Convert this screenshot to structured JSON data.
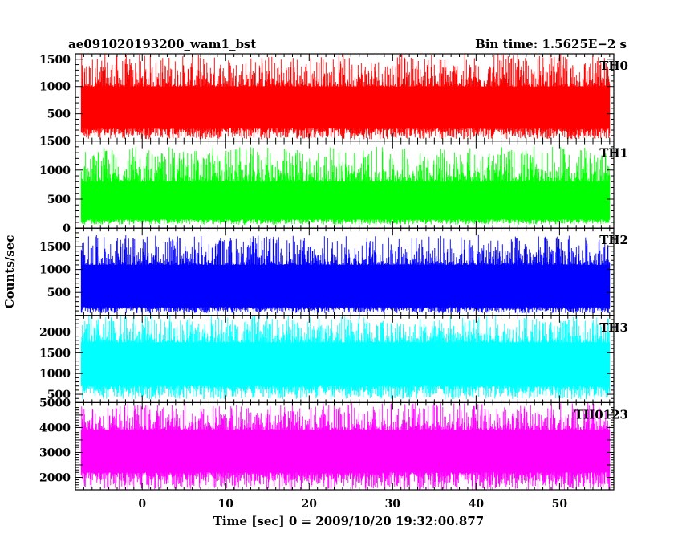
{
  "chart_data": {
    "type": "line",
    "title_left": "ae091020193200_wam1_bst",
    "title_right": "Bin time: 1.5625E−2 s",
    "xlabel": "Time [sec] 0 = 2009/10/20 19:32:00.877",
    "ylabel": "Counts/sec",
    "xlim": [
      -8,
      56.5
    ],
    "x_ticks": [
      0,
      10,
      20,
      30,
      40,
      50
    ],
    "x_data_range": [
      -7.3,
      56.0
    ],
    "grid": false,
    "panels": [
      {
        "name": "TH0",
        "color": "#ff0000",
        "ylim": [
          0,
          1600
        ],
        "ticks": [
          500,
          1000,
          1500
        ],
        "band": [
          230,
          1000
        ],
        "min": 30,
        "max": 1600
      },
      {
        "name": "TH1",
        "color": "#00ff00",
        "ylim": [
          0,
          1500
        ],
        "ticks": [
          0,
          500,
          1000,
          1500
        ],
        "band": [
          150,
          800
        ],
        "min": 60,
        "max": 1400
      },
      {
        "name": "TH2",
        "color": "#0000ff",
        "ylim": [
          0,
          1900
        ],
        "ticks": [
          500,
          1000,
          1500
        ],
        "band": [
          180,
          1100
        ],
        "min": 50,
        "max": 1750
      },
      {
        "name": "TH3",
        "color": "#00ffff",
        "ylim": [
          300,
          2400
        ],
        "ticks": [
          500,
          1000,
          1500,
          2000
        ],
        "band": [
          700,
          1750
        ],
        "min": 380,
        "max": 2400
      },
      {
        "name": "TH0123",
        "color": "#ff00ff",
        "ylim": [
          1500,
          5000
        ],
        "ticks": [
          2000,
          3000,
          4000,
          5000
        ],
        "band": [
          2200,
          3900
        ],
        "min": 1500,
        "max": 5000
      }
    ]
  }
}
